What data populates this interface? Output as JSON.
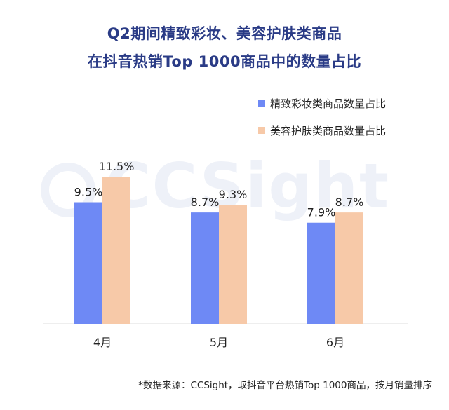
{
  "title_line1": "Q2期间精致彩妆、美容护肤类商品",
  "title_line2": "在抖音热销Top 1000商品中的数量占比",
  "watermark_text": "CCSight",
  "footnote": "*数据来源：CCSight，取抖音平台热销Top 1000商品，按月销量排序",
  "colors": {
    "series1": "#6e89f5",
    "series2": "#f7c9a8",
    "title": "#2a3b86",
    "axis": "#dddddd"
  },
  "chart_data": {
    "type": "bar",
    "categories": [
      "4月",
      "5月",
      "6月"
    ],
    "series": [
      {
        "name": "精致彩妆类商品数量占比",
        "values": [
          9.5,
          8.7,
          7.9
        ],
        "labels": [
          "9.5%",
          "8.7%",
          "7.9%"
        ]
      },
      {
        "name": "美容护肤类商品数量占比",
        "values": [
          11.5,
          9.3,
          8.7
        ],
        "labels": [
          "11.5%",
          "9.3%",
          "8.7%"
        ]
      }
    ],
    "ylim": [
      0,
      16
    ],
    "legend_position": "top-right",
    "grid": false
  }
}
